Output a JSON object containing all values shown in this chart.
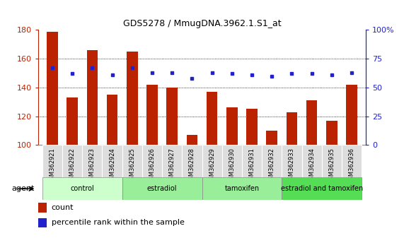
{
  "title": "GDS5278 / MmugDNA.3962.1.S1_at",
  "samples": [
    "GSM362921",
    "GSM362922",
    "GSM362923",
    "GSM362924",
    "GSM362925",
    "GSM362926",
    "GSM362927",
    "GSM362928",
    "GSM362929",
    "GSM362930",
    "GSM362931",
    "GSM362932",
    "GSM362933",
    "GSM362934",
    "GSM362935",
    "GSM362936"
  ],
  "counts": [
    179,
    133,
    166,
    135,
    165,
    142,
    140,
    107,
    137,
    126,
    125,
    110,
    123,
    131,
    117,
    142
  ],
  "percentiles": [
    67,
    62,
    67,
    61,
    67,
    63,
    63,
    58,
    63,
    62,
    61,
    60,
    62,
    62,
    61,
    63
  ],
  "group_data": [
    {
      "label": "control",
      "start": 0,
      "end": 3,
      "color": "#ccffcc"
    },
    {
      "label": "estradiol",
      "start": 4,
      "end": 7,
      "color": "#99ee99"
    },
    {
      "label": "tamoxifen",
      "start": 8,
      "end": 11,
      "color": "#99ee99"
    },
    {
      "label": "estradiol and tamoxifen",
      "start": 12,
      "end": 15,
      "color": "#55dd55"
    }
  ],
  "ylim_left": [
    100,
    180
  ],
  "ylim_right": [
    0,
    100
  ],
  "left_ticks": [
    100,
    120,
    140,
    160,
    180
  ],
  "right_ticks": [
    0,
    25,
    50,
    75,
    100
  ],
  "right_tick_labels": [
    "0",
    "25",
    "50",
    "75",
    "100%"
  ],
  "bar_color": "#bb2200",
  "dot_color": "#2222cc",
  "bar_width": 0.55,
  "agent_label": "agent",
  "legend_count": "count",
  "legend_percentile": "percentile rank within the sample",
  "tick_bg_color": "#dddddd",
  "spine_color": "#888888"
}
